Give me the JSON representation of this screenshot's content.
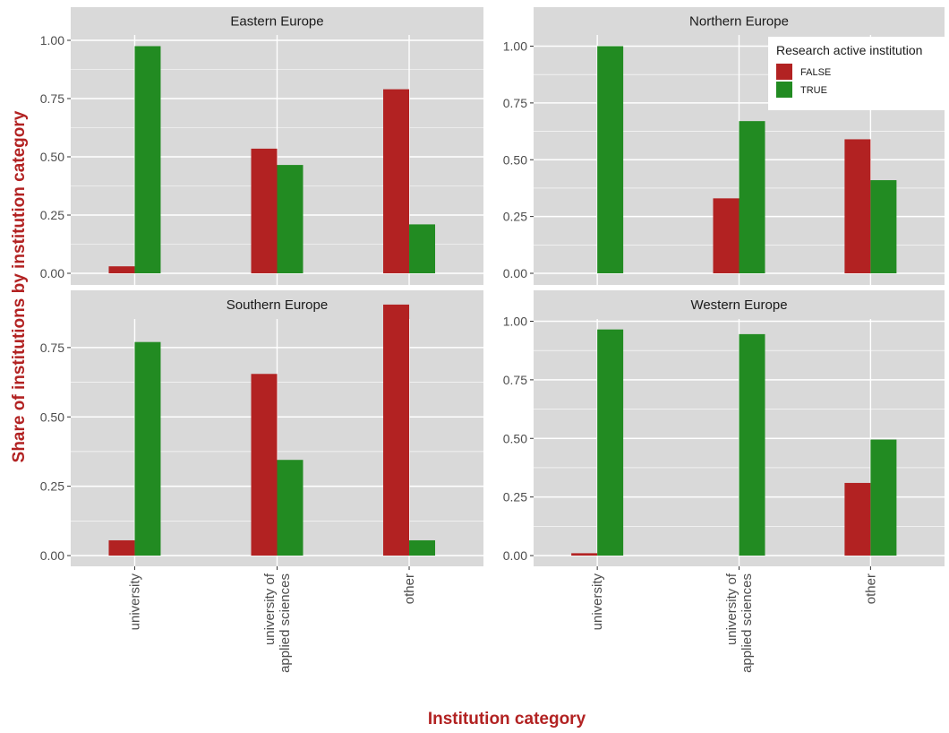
{
  "chart_data": {
    "type": "bar",
    "layout": "facet-grid 2x2, free y scales",
    "xlabel": "Institution category",
    "ylabel": "Share of institutions by institution category",
    "categories": [
      "university",
      "university of\napplied sciences",
      "other"
    ],
    "legend": {
      "title": "Research active institution",
      "placement": "top-right",
      "entries": [
        "FALSE",
        "TRUE"
      ]
    },
    "colors": {
      "FALSE": "#b22222",
      "TRUE": "#228b22",
      "axis_title": "#b22222",
      "panel_bg": "#d9d9d9",
      "strip_bg": "#d9d9d9",
      "grid": "#ffffff"
    },
    "grid": true,
    "facets": [
      {
        "title": "Eastern Europe",
        "ylim": [
          -0.04,
          1.08
        ],
        "yticks": [
          0,
          0.25,
          0.5,
          0.75,
          1.0
        ],
        "ytick_labels": [
          "0.00",
          "0.25",
          "0.50",
          "0.75",
          "1.00"
        ],
        "series": [
          {
            "name": "FALSE",
            "values": [
              0.03,
              0.535,
              0.79
            ]
          },
          {
            "name": "TRUE",
            "values": [
              0.975,
              0.465,
              0.21
            ]
          }
        ]
      },
      {
        "title": "Northern Europe",
        "ylim": [
          -0.04,
          1.08
        ],
        "yticks": [
          0,
          0.25,
          0.5,
          0.75,
          1.0
        ],
        "ytick_labels": [
          "0.00",
          "0.25",
          "0.50",
          "0.75",
          "1.00"
        ],
        "series": [
          {
            "name": "FALSE",
            "values": [
              0.0,
              0.33,
              0.59
            ]
          },
          {
            "name": "TRUE",
            "values": [
              1.0,
              0.67,
              0.41
            ]
          }
        ]
      },
      {
        "title": "Southern Europe",
        "ylim": [
          -0.03,
          0.955
        ],
        "yticks": [
          0,
          0.25,
          0.5,
          0.75
        ],
        "ytick_labels": [
          "0.00",
          "0.25",
          "0.50",
          "0.75"
        ],
        "series": [
          {
            "name": "FALSE",
            "values": [
              0.055,
              0.655,
              0.905
            ]
          },
          {
            "name": "TRUE",
            "values": [
              0.77,
              0.345,
              0.055
            ]
          }
        ]
      },
      {
        "title": "Western Europe",
        "ylim": [
          -0.04,
          1.08
        ],
        "yticks": [
          0,
          0.25,
          0.5,
          0.75,
          1.0
        ],
        "ytick_labels": [
          "0.00",
          "0.25",
          "0.50",
          "0.75",
          "1.00"
        ],
        "series": [
          {
            "name": "FALSE",
            "values": [
              0.01,
              0.0,
              0.31
            ]
          },
          {
            "name": "TRUE",
            "values": [
              0.965,
              0.945,
              0.495
            ]
          }
        ]
      }
    ]
  }
}
